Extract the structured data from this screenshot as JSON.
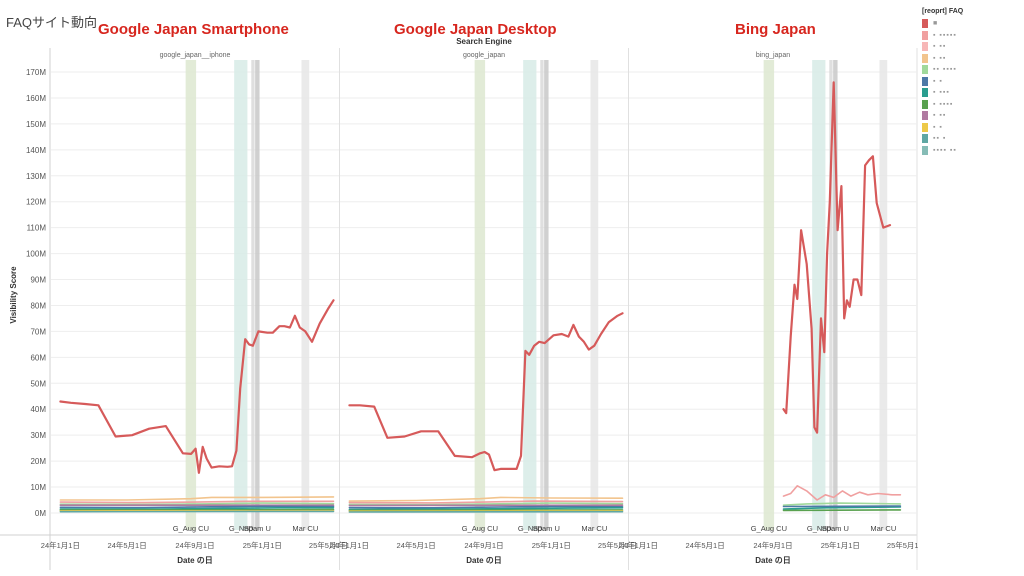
{
  "page": {
    "title": "FAQサイト動向",
    "panel_headings": [
      "Google Japan Smartphone",
      "Google Japan Desktop",
      "Bing Japan"
    ]
  },
  "legend": {
    "title": "[reoprt] FAQ",
    "items": [
      {
        "color": "#d65a5a",
        "label": "■"
      },
      {
        "color": "#f0a0a0",
        "label": "▪ ▪▪▪▪▪"
      },
      {
        "color": "#f7b7b7",
        "label": "▪ ▪▪"
      },
      {
        "color": "#f2c48d",
        "label": "▪ ▪▪"
      },
      {
        "color": "#a1d99b",
        "label": "▪▪ ▪▪▪▪"
      },
      {
        "color": "#4e79a7",
        "label": "▪ ▪"
      },
      {
        "color": "#2a9d8f",
        "label": "▪ ▪▪▪"
      },
      {
        "color": "#59a14f",
        "label": "▪ ▪▪▪▪"
      },
      {
        "color": "#b07aa1",
        "label": "▪ ▪▪"
      },
      {
        "color": "#edc948",
        "label": "▪ ▪"
      },
      {
        "color": "#5fa7a3",
        "label": "▪▪ ▪"
      },
      {
        "color": "#86bcb6",
        "label": "▪▪▪▪ ▪▪"
      }
    ]
  },
  "chart_data": {
    "type": "line",
    "title": "",
    "xlabel": "Date の日",
    "ylabel": "Visibility Score",
    "column_header": "Search Engine",
    "ylim": [
      0,
      170000000
    ],
    "yticks": [
      0,
      10000000,
      20000000,
      30000000,
      40000000,
      50000000,
      60000000,
      70000000,
      80000000,
      90000000,
      100000000,
      110000000,
      120000000,
      130000000,
      140000000,
      150000000,
      160000000,
      170000000
    ],
    "ytick_labels": [
      "0M",
      "10M",
      "20M",
      "30M",
      "40M",
      "50M",
      "60M",
      "70M",
      "80M",
      "90M",
      "100M",
      "110M",
      "120M",
      "130M",
      "140M",
      "150M",
      "160M",
      "170M"
    ],
    "xlim": [
      "2023-12-15",
      "2025-05-20"
    ],
    "xticks": [
      "2024-01-01",
      "2024-05-01",
      "2024-09-01",
      "2025-01-01",
      "2025-05-01"
    ],
    "xtick_labels": [
      "24年1月1日",
      "24年5月1日",
      "24年9月1日",
      "25年1月1日",
      "25年5月1日"
    ],
    "events": [
      {
        "label": "G_Aug CU",
        "start": "2024-08-15",
        "end": "2024-09-03",
        "color": "#dde8d0"
      },
      {
        "label": "G_No..",
        "start": "2024-11-11",
        "end": "2024-12-05",
        "color": "#d7ebe6"
      },
      {
        "label": "D..",
        "start": "2024-12-12",
        "end": "2024-12-18",
        "color": "#d9d9d9"
      },
      {
        "label": "Spam U",
        "start": "2024-12-19",
        "end": "2024-12-27",
        "color": "#c8c8c8"
      },
      {
        "label": "Mar CU",
        "start": "2025-03-13",
        "end": "2025-03-27",
        "color": "#e6e6e6"
      }
    ],
    "panels": [
      {
        "name": "google_japan__iphone",
        "series": [
          {
            "name": "",
            "color": "#d65a5a",
            "x": [
              "2024-01-01",
              "2024-01-20",
              "2024-02-15",
              "2024-03-10",
              "2024-04-10",
              "2024-05-10",
              "2024-06-10",
              "2024-07-10",
              "2024-08-10",
              "2024-08-25",
              "2024-09-02",
              "2024-09-08",
              "2024-09-15",
              "2024-09-22",
              "2024-10-01",
              "2024-10-15",
              "2024-10-30",
              "2024-11-07",
              "2024-11-15",
              "2024-11-22",
              "2024-12-01",
              "2024-12-08",
              "2024-12-15",
              "2024-12-25",
              "2025-01-10",
              "2025-01-20",
              "2025-02-01",
              "2025-02-10",
              "2025-02-20",
              "2025-03-01",
              "2025-03-10",
              "2025-03-20",
              "2025-04-01",
              "2025-04-15",
              "2025-05-01",
              "2025-05-10"
            ],
            "values": [
              43,
              42.5,
              42,
              41.5,
              29.5,
              30,
              32.5,
              33.5,
              23,
              22.8,
              24.8,
              15.5,
              25.5,
              21,
              17.5,
              18,
              17.8,
              18,
              24,
              48,
              67,
              65,
              64.5,
              70,
              69.5,
              69.5,
              72,
              72,
              71.5,
              76,
              71.5,
              70,
              66,
              73,
              79,
              82
            ]
          },
          {
            "name": "",
            "color": "#f2c48d",
            "x": [
              "2024-01-01",
              "2024-05-01",
              "2024-08-25",
              "2024-10-01",
              "2025-01-01",
              "2025-05-10"
            ],
            "values": [
              5,
              5,
              5.5,
              6,
              6,
              6.2
            ]
          },
          {
            "name": "",
            "color": "#f0a0a0",
            "x": [
              "2024-01-01",
              "2024-06-01",
              "2024-09-01",
              "2024-12-01",
              "2025-05-10"
            ],
            "values": [
              4.2,
              4,
              4.2,
              4.5,
              4.5
            ]
          },
          {
            "name": "",
            "color": "#a1d99b",
            "x": [
              "2024-01-01",
              "2024-06-01",
              "2024-09-15",
              "2025-01-01",
              "2025-05-10"
            ],
            "values": [
              3.4,
              3.3,
              3.5,
              3.8,
              3.6
            ]
          },
          {
            "name": "",
            "color": "#b07aa1",
            "x": [
              "2024-01-01",
              "2025-05-10"
            ],
            "values": [
              3,
              3
            ]
          },
          {
            "name": "",
            "color": "#4e79a7",
            "x": [
              "2024-01-01",
              "2024-06-01",
              "2024-10-01",
              "2025-01-01",
              "2025-05-10"
            ],
            "values": [
              2.2,
              2.1,
              2.4,
              2.6,
              2.5
            ]
          },
          {
            "name": "",
            "color": "#2a9d8f",
            "x": [
              "2024-01-01",
              "2024-07-01",
              "2024-11-01",
              "2025-02-01",
              "2025-05-10"
            ],
            "values": [
              1.5,
              1.5,
              1.8,
              2,
              2
            ]
          },
          {
            "name": "",
            "color": "#59a14f",
            "x": [
              "2024-01-01",
              "2025-05-10"
            ],
            "values": [
              1.1,
              1.3
            ]
          },
          {
            "name": "",
            "color": "#edc948",
            "x": [
              "2024-01-01",
              "2025-05-10"
            ],
            "values": [
              0.8,
              0.9
            ]
          },
          {
            "name": "",
            "color": "#5fa7a3",
            "x": [
              "2024-01-01",
              "2025-05-10"
            ],
            "values": [
              0.5,
              0.6
            ]
          }
        ]
      },
      {
        "name": "google_japan",
        "series": [
          {
            "name": "",
            "color": "#d65a5a",
            "x": [
              "2024-01-01",
              "2024-01-20",
              "2024-02-15",
              "2024-03-10",
              "2024-04-10",
              "2024-05-10",
              "2024-06-10",
              "2024-07-10",
              "2024-08-10",
              "2024-08-25",
              "2024-09-02",
              "2024-09-10",
              "2024-09-20",
              "2024-10-01",
              "2024-10-15",
              "2024-10-30",
              "2024-11-07",
              "2024-11-15",
              "2024-11-22",
              "2024-12-01",
              "2024-12-10",
              "2024-12-20",
              "2025-01-05",
              "2025-01-20",
              "2025-02-01",
              "2025-02-10",
              "2025-02-20",
              "2025-03-01",
              "2025-03-10",
              "2025-03-20",
              "2025-04-01",
              "2025-04-15",
              "2025-05-01",
              "2025-05-10"
            ],
            "values": [
              41.5,
              41.5,
              41,
              29,
              29.5,
              31.5,
              31.5,
              22,
              21.5,
              23,
              23.5,
              22.5,
              16.5,
              17,
              17,
              17,
              22,
              62.5,
              61,
              64.5,
              66,
              65.5,
              68.5,
              69,
              68,
              72.5,
              68,
              66,
              63,
              64.5,
              69,
              73.5,
              76,
              77
            ]
          },
          {
            "name": "",
            "color": "#f2c48d",
            "x": [
              "2024-01-01",
              "2024-05-01",
              "2024-08-25",
              "2024-10-01",
              "2025-01-01",
              "2025-05-10"
            ],
            "values": [
              4.6,
              4.8,
              5.5,
              6,
              5.8,
              5.7
            ]
          },
          {
            "name": "",
            "color": "#f0a0a0",
            "x": [
              "2024-01-01",
              "2024-06-01",
              "2024-09-01",
              "2024-12-01",
              "2025-05-10"
            ],
            "values": [
              4,
              3.9,
              4.2,
              4.6,
              4.4
            ]
          },
          {
            "name": "",
            "color": "#a1d99b",
            "x": [
              "2024-01-01",
              "2024-06-01",
              "2024-09-15",
              "2025-01-01",
              "2025-05-10"
            ],
            "values": [
              3.3,
              3.2,
              3.5,
              3.8,
              3.6
            ]
          },
          {
            "name": "",
            "color": "#b07aa1",
            "x": [
              "2024-01-01",
              "2025-05-10"
            ],
            "values": [
              2.9,
              3
            ]
          },
          {
            "name": "",
            "color": "#4e79a7",
            "x": [
              "2024-01-01",
              "2024-06-01",
              "2024-10-01",
              "2025-01-01",
              "2025-05-10"
            ],
            "values": [
              2.1,
              2,
              2.3,
              2.5,
              2.4
            ]
          },
          {
            "name": "",
            "color": "#2a9d8f",
            "x": [
              "2024-01-01",
              "2024-07-01",
              "2024-11-01",
              "2025-02-01",
              "2025-05-10"
            ],
            "values": [
              1.4,
              1.5,
              1.7,
              1.9,
              2
            ]
          },
          {
            "name": "",
            "color": "#59a14f",
            "x": [
              "2024-01-01",
              "2025-05-10"
            ],
            "values": [
              1,
              1.2
            ]
          },
          {
            "name": "",
            "color": "#edc948",
            "x": [
              "2024-01-01",
              "2025-05-10"
            ],
            "values": [
              0.7,
              0.8
            ]
          },
          {
            "name": "",
            "color": "#5fa7a3",
            "x": [
              "2024-01-01",
              "2025-05-10"
            ],
            "values": [
              0.4,
              0.5
            ]
          }
        ]
      },
      {
        "name": "bing_japan",
        "series": [
          {
            "name": "",
            "color": "#d65a5a",
            "x": [
              "2024-09-20",
              "2024-09-25",
              "2024-10-03",
              "2024-10-10",
              "2024-10-15",
              "2024-10-22",
              "2024-11-01",
              "2024-11-10",
              "2024-11-15",
              "2024-11-20",
              "2024-11-27",
              "2024-12-03",
              "2024-12-08",
              "2024-12-13",
              "2024-12-20",
              "2024-12-27",
              "2025-01-03",
              "2025-01-08",
              "2025-01-13",
              "2025-01-18",
              "2025-01-25",
              "2025-02-01",
              "2025-02-08",
              "2025-02-15",
              "2025-02-22",
              "2025-03-01",
              "2025-03-08",
              "2025-03-20",
              "2025-04-01",
              "2025-04-10",
              "2025-04-20"
            ],
            "values": [
              40,
              38.5,
              68,
              88,
              82.5,
              109,
              96,
              71,
              33,
              31,
              75,
              62,
              100,
              120,
              166,
              109,
              126,
              75,
              82,
              79.5,
              90,
              90,
              84,
              134,
              136,
              137.5,
              119.5,
              110,
              111,
              0,
              0
            ]
          },
          {
            "name": "",
            "color": "#f0a0a0",
            "x": [
              "2024-09-20",
              "2024-10-03",
              "2024-10-15",
              "2024-11-01",
              "2024-11-20",
              "2024-12-05",
              "2024-12-20",
              "2025-01-05",
              "2025-01-20",
              "2025-02-05",
              "2025-02-20",
              "2025-03-10",
              "2025-04-05",
              "2025-04-20"
            ],
            "values": [
              6.5,
              7.5,
              10.5,
              8.5,
              5,
              7,
              6,
              8.5,
              6.5,
              8,
              7,
              7.5,
              7,
              7
            ]
          },
          {
            "name": "",
            "color": "#a1d99b",
            "x": [
              "2024-09-20",
              "2024-11-01",
              "2025-01-01",
              "2025-04-20"
            ],
            "values": [
              3,
              3.5,
              3.8,
              3.5
            ]
          },
          {
            "name": "",
            "color": "#2a9d8f",
            "x": [
              "2024-09-20",
              "2024-12-01",
              "2025-04-20"
            ],
            "values": [
              1.5,
              2,
              2.3
            ]
          },
          {
            "name": "",
            "color": "#4e79a7",
            "x": [
              "2024-09-20",
              "2025-04-20"
            ],
            "values": [
              2.5,
              2.7
            ]
          },
          {
            "name": "",
            "color": "#59a14f",
            "x": [
              "2024-09-20",
              "2025-04-20"
            ],
            "values": [
              1,
              1.2
            ]
          }
        ]
      }
    ]
  }
}
